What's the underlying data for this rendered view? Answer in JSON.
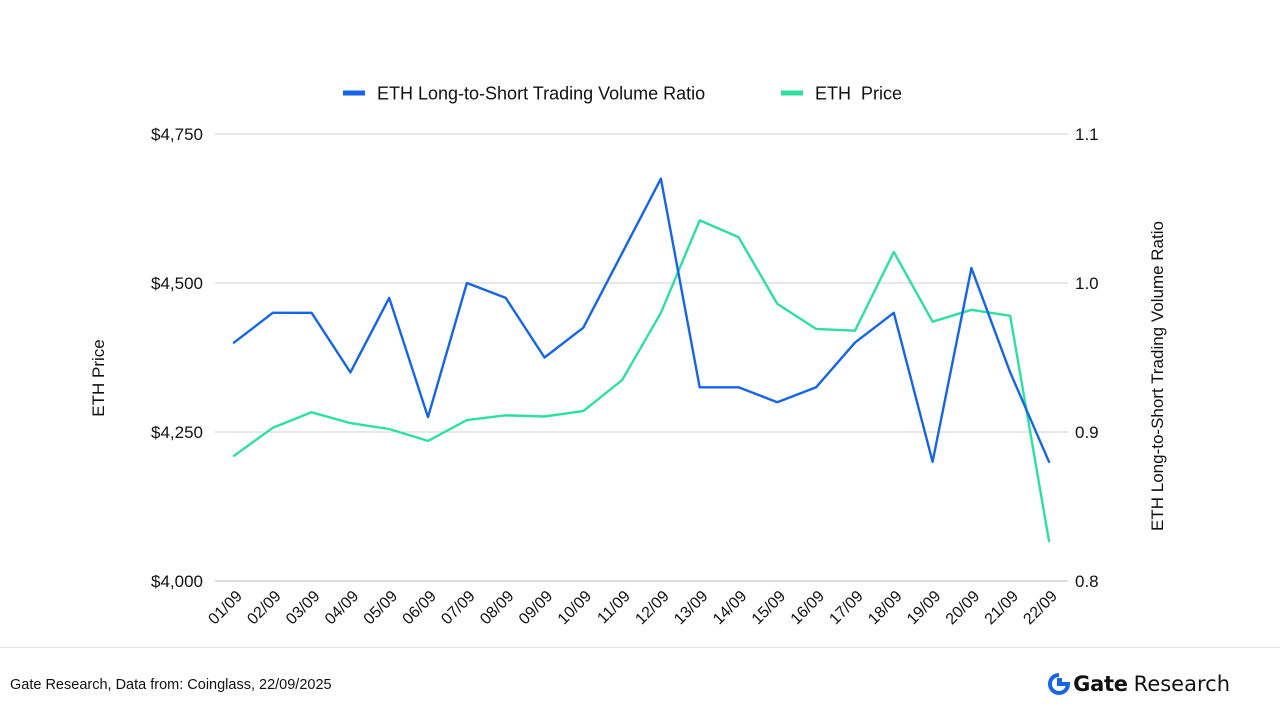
{
  "chart_data": {
    "type": "line",
    "title": "",
    "categories": [
      "01/09",
      "02/09",
      "03/09",
      "04/09",
      "05/09",
      "06/09",
      "07/09",
      "08/09",
      "09/09",
      "10/09",
      "11/09",
      "12/09",
      "13/09",
      "14/09",
      "15/09",
      "16/09",
      "17/09",
      "18/09",
      "19/09",
      "20/09",
      "21/09",
      "22/09"
    ],
    "series": [
      {
        "name": "ETH Long-to-Short Trading Volume Ratio",
        "axis": "right",
        "color": "#1565e6",
        "values": [
          0.96,
          0.98,
          0.98,
          0.94,
          0.99,
          0.91,
          1.0,
          0.99,
          0.95,
          0.97,
          1.02,
          1.07,
          0.93,
          0.93,
          0.92,
          0.93,
          0.96,
          0.98,
          0.88,
          1.01,
          0.94,
          0.88
        ]
      },
      {
        "name": "ETH  Price",
        "axis": "left",
        "color": "#2ee0a0",
        "values": [
          4210,
          4257,
          4283,
          4265,
          4255,
          4235,
          4270,
          4278,
          4276,
          4285,
          4337,
          4450,
          4605,
          4577,
          4465,
          4423,
          4420,
          4552,
          4435,
          4455,
          4445,
          4067
        ]
      }
    ],
    "y_left": {
      "label": "ETH Price",
      "min": 4000,
      "max": 4750,
      "ticks": [
        "$4,000",
        "$4,250",
        "$4,500",
        "$4,750"
      ]
    },
    "y_right": {
      "label": "ETH Long-to-Short Trading Volume Ratio",
      "min": 0.8,
      "max": 1.1,
      "ticks": [
        "0.8",
        "0.9",
        "1.0",
        "1.1"
      ]
    },
    "grid": true,
    "legend_position": "top-center"
  },
  "footer": {
    "source": "Gate Research, Data from: Coinglass, 22/09/2025",
    "brand_name": "Gate",
    "brand_suffix": "Research",
    "brand_color": "#1565e6"
  }
}
